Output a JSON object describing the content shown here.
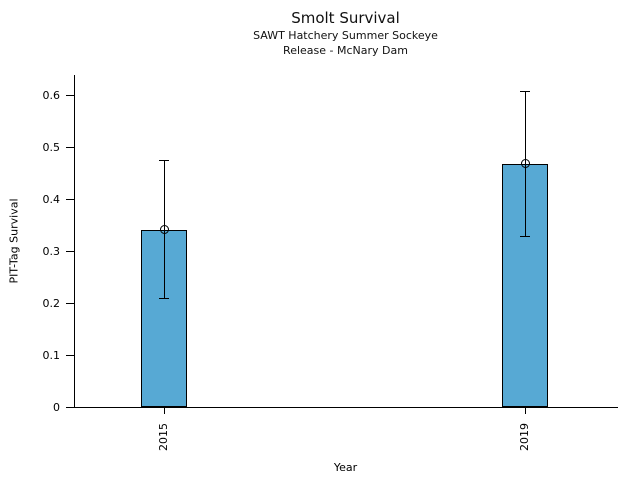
{
  "figure": {
    "title": "Smolt Survival",
    "subtitle_line1": "SAWT Hatchery Summer Sockeye",
    "subtitle_line2": "Release - McNary Dam"
  },
  "chart_data": {
    "type": "bar",
    "title": "Smolt Survival",
    "subtitle": [
      "SAWT Hatchery Summer Sockeye",
      "Release - McNary Dam"
    ],
    "categories": [
      "2015",
      "2019"
    ],
    "values": [
      0.342,
      0.469
    ],
    "error_bars": [
      {
        "low": 0.21,
        "high": 0.475
      },
      {
        "low": 0.329,
        "high": 0.607
      }
    ],
    "xlabel": "Year",
    "ylabel": "PIT-Tag Survival",
    "yticks": [
      "0",
      "0.1",
      "0.2",
      "0.3",
      "0.4",
      "0.5",
      "0.6"
    ],
    "ylim": [
      0,
      0.64
    ],
    "x_tick_rotation_deg": 90,
    "grid": false,
    "legend_position": "none",
    "marker": "open-circle",
    "colors": {
      "bar_fill": "#57a9d4",
      "bar_edge": "#000000",
      "error_bar": "#000000",
      "text": "#111111",
      "axis": "#000000",
      "background": "#ffffff"
    }
  }
}
